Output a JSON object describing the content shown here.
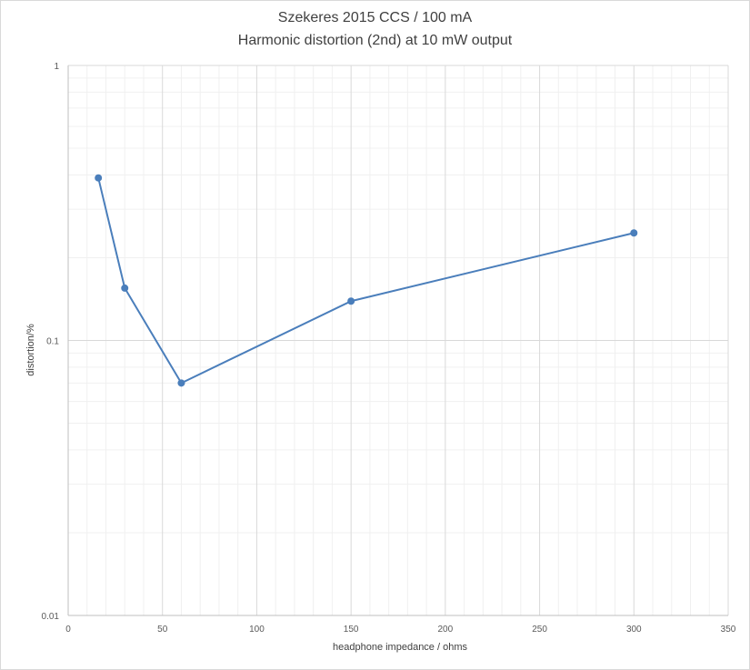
{
  "chart_data": {
    "type": "line",
    "title": "Szekeres 2015 CCS / 100 mA",
    "subtitle": "Harmonic distortion (2nd) at 10 mW output",
    "xlabel": "headphone impedance / ohms",
    "ylabel": "distortion/%",
    "xlim": [
      0,
      350
    ],
    "ylim": [
      0.01,
      1
    ],
    "yscale": "log",
    "grid": true,
    "x_ticks": [
      "0",
      "50",
      "100",
      "150",
      "200",
      "250",
      "300",
      "350"
    ],
    "y_ticks": [
      "0.01",
      "0.1",
      "1"
    ],
    "series": [
      {
        "x": [
          16,
          30,
          60,
          150,
          300
        ],
        "y": [
          0.39,
          0.155,
          0.07,
          0.139,
          0.246
        ],
        "color": "#4a7ebb"
      }
    ]
  }
}
